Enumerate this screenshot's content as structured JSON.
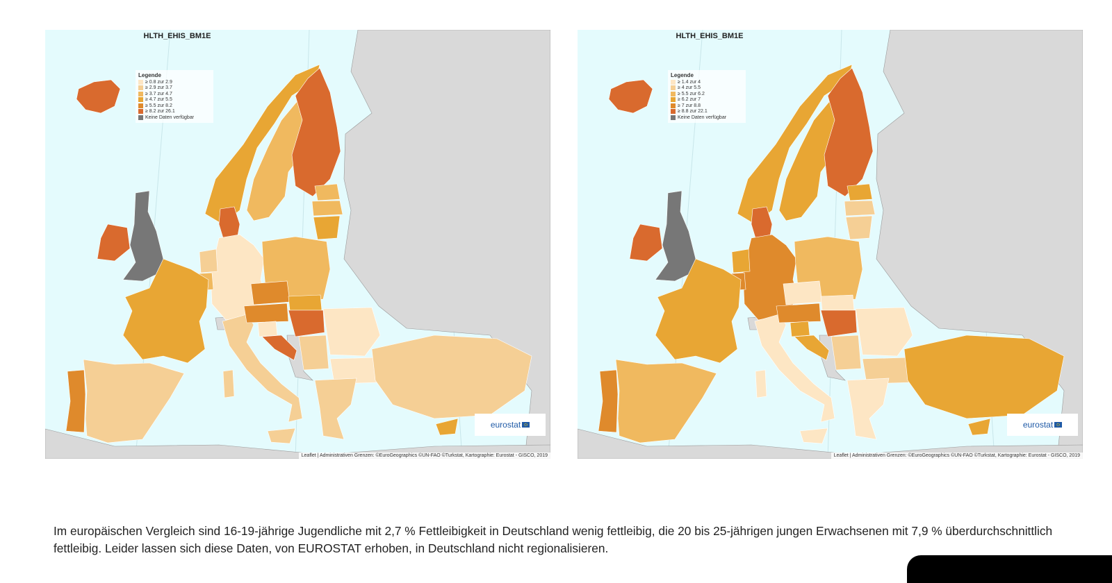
{
  "colors": {
    "classes": [
      "#fde6c4",
      "#f5cf95",
      "#f0b95f",
      "#e8a634",
      "#df8a2c",
      "#d96a2e",
      "#777777"
    ],
    "sea": "#e4fbfd",
    "land_other": "#d9d9d9"
  },
  "maps": [
    {
      "title": "HLTH_EHIS_BM1E",
      "legend_title": "Legende",
      "legend": [
        "≥ 0.8 zur 2.9",
        "≥ 2.9 zur 3.7",
        "≥ 3.7 zur 4.7",
        "≥ 4.7 zur 5.5",
        "≥ 5.5 zur 8.2",
        "≥ 8.2 zur 26.1",
        "Keine Daten verfügbar"
      ],
      "logo": "eurostat",
      "attribution": "Leaflet | Administrativen Grenzen: ©EuroGeographics ©UN-FAO ©Turkstat, Kartographie: Eurostat - GISCO, 2019",
      "classes": {
        "iceland": 5,
        "ireland": 5,
        "uk": 6,
        "norway": 3,
        "sweden": 2,
        "finland": 5,
        "estonia": 2,
        "latvia": 2,
        "lithuania": 3,
        "denmark": 5,
        "germany": 0,
        "netherlands": 1,
        "belgium": 2,
        "poland": 2,
        "france": 3,
        "spain": 1,
        "portugal": 4,
        "italy": 1,
        "sicily": 1,
        "sardinia": 1,
        "austria": 4,
        "czechia": 4,
        "slovakia": 3,
        "hungary": 5,
        "slovenia": 0,
        "croatia": 5,
        "serbia": 1,
        "romania": 0,
        "bulgaria": 0,
        "greece": 1,
        "turkey": 1,
        "cyprus": 3
      }
    },
    {
      "title": "HLTH_EHIS_BM1E",
      "legend_title": "Legende",
      "legend": [
        "≥ 1.4 zur 4",
        "≥ 4 zur 5.5",
        "≥ 5.5 zur 6.2",
        "≥ 6.2 zur 7",
        "≥ 7 zur 8.8",
        "≥ 8.8 zur 22.1",
        "Keine Daten verfügbar"
      ],
      "logo": "eurostat",
      "attribution": "Leaflet | Administrativen Grenzen: ©EuroGeographics ©UN-FAO ©Turkstat, Kartographie: Eurostat - GISCO, 2019",
      "classes": {
        "iceland": 5,
        "ireland": 5,
        "uk": 6,
        "norway": 3,
        "sweden": 3,
        "finland": 5,
        "estonia": 3,
        "latvia": 1,
        "lithuania": 1,
        "denmark": 5,
        "germany": 4,
        "netherlands": 3,
        "belgium": 4,
        "poland": 2,
        "france": 3,
        "spain": 2,
        "portugal": 4,
        "italy": 0,
        "sicily": 0,
        "sardinia": 0,
        "austria": 4,
        "czechia": 0,
        "slovakia": 0,
        "hungary": 5,
        "slovenia": 3,
        "croatia": 3,
        "serbia": 1,
        "romania": 0,
        "bulgaria": 1,
        "greece": 0,
        "turkey": 3,
        "cyprus": 3
      }
    }
  ],
  "caption": "Im europäischen Vergleich sind 16-19-jährige Jugendliche mit 2,7 % Fettleibigkeit in Deutschland wenig fettleibig, die 20 bis 25-jährigen jungen Erwachsenen mit 7,9 %  überdurchschnittlich fettleibig. Leider lassen sich diese Daten, von EUROSTAT erhoben, in Deutschland nicht regionalisieren."
}
